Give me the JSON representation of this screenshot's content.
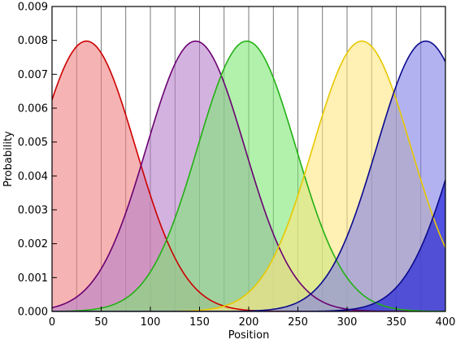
{
  "chart_data": {
    "type": "area",
    "xlabel": "Position",
    "ylabel": "Probability",
    "xlim": [
      0,
      400
    ],
    "ylim": [
      0,
      0.009
    ],
    "x_ticks": [
      0,
      50,
      100,
      150,
      200,
      250,
      300,
      350,
      400
    ],
    "x_tick_labels": [
      "0",
      "50",
      "100",
      "150",
      "200",
      "250",
      "300",
      "350",
      "400"
    ],
    "y_ticks": [
      0,
      0.001,
      0.002,
      0.003,
      0.004,
      0.005,
      0.006,
      0.007,
      0.008,
      0.009
    ],
    "y_tick_labels": [
      "0.000",
      "0.001",
      "0.002",
      "0.003",
      "0.004",
      "0.005",
      "0.006",
      "0.007",
      "0.008",
      "0.009"
    ],
    "vertical_gridlines_x": [
      25,
      50,
      75,
      100,
      125,
      150,
      175,
      200,
      225,
      250,
      275,
      300,
      325,
      350,
      375
    ],
    "series": [
      {
        "mean": 35,
        "std": 50,
        "peak": 0.00798,
        "line_color": "#cc0000",
        "fill_color": "#f08080"
      },
      {
        "mean": 146,
        "std": 50,
        "peak": 0.00798,
        "line_color": "#6a0070",
        "fill_color": "#b87fc9"
      },
      {
        "mean": 198,
        "std": 50,
        "peak": 0.00798,
        "line_color": "#22b014",
        "fill_color": "#7de874"
      },
      {
        "mean": 315,
        "std": 50,
        "peak": 0.00798,
        "line_color": "#e8c800",
        "fill_color": "#ffe680"
      },
      {
        "mean": 380,
        "std": 50,
        "peak": 0.00798,
        "line_color": "#0a0a8c",
        "fill_color": "#7f7fe8"
      },
      {
        "mean": 460,
        "std": 50,
        "peak": 0.00798,
        "line_color": "#0a0a8c",
        "fill_color": "#1010d8"
      }
    ]
  }
}
